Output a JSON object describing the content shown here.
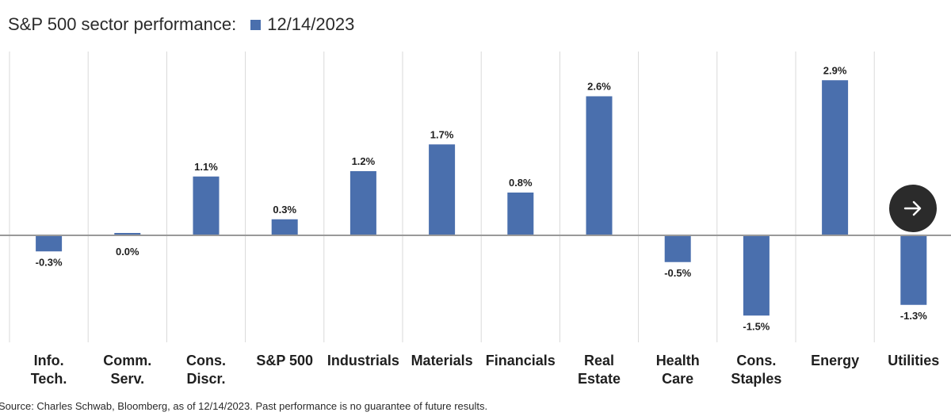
{
  "header": {
    "title": "S&P 500 sector performance:"
  },
  "footer": {
    "source": "Source: Charles Schwab, Bloomberg, as of 12/14/2023.  Past performance is no guarantee of future results."
  },
  "navigation": {
    "next_icon": "arrow-right-icon"
  },
  "colors": {
    "bar": "#4a6fad",
    "grid": "#d9d9d9",
    "baseline": "#999999",
    "button_bg": "#2b2b2b"
  },
  "chart_data": {
    "type": "bar",
    "title": "S&P 500 sector performance:",
    "xlabel": "",
    "ylabel": "",
    "ylim": [
      -2.2,
      3.6
    ],
    "grid": "vertical separators between categories",
    "legend": "top-left, next to title",
    "categories": [
      [
        "Info.",
        "Tech."
      ],
      [
        "Comm.",
        "Serv."
      ],
      [
        "Cons.",
        "Discr."
      ],
      [
        "S&P 500"
      ],
      [
        "Industrials"
      ],
      [
        "Materials"
      ],
      [
        "Financials"
      ],
      [
        "Real",
        "Estate"
      ],
      [
        "Health",
        "Care"
      ],
      [
        "Cons.",
        "Staples"
      ],
      [
        "Energy"
      ],
      [
        "Utilities"
      ]
    ],
    "series": [
      {
        "name": "12/14/2023",
        "values": [
          -0.3,
          0.0,
          1.1,
          0.3,
          1.2,
          1.7,
          0.8,
          2.6,
          -0.5,
          -1.5,
          2.9,
          -1.3
        ],
        "labels": [
          "-0.3%",
          "0.0%",
          "1.1%",
          "0.3%",
          "1.2%",
          "1.7%",
          "0.8%",
          "2.6%",
          "-0.5%",
          "-1.5%",
          "2.9%",
          "-1.3%"
        ]
      }
    ]
  }
}
